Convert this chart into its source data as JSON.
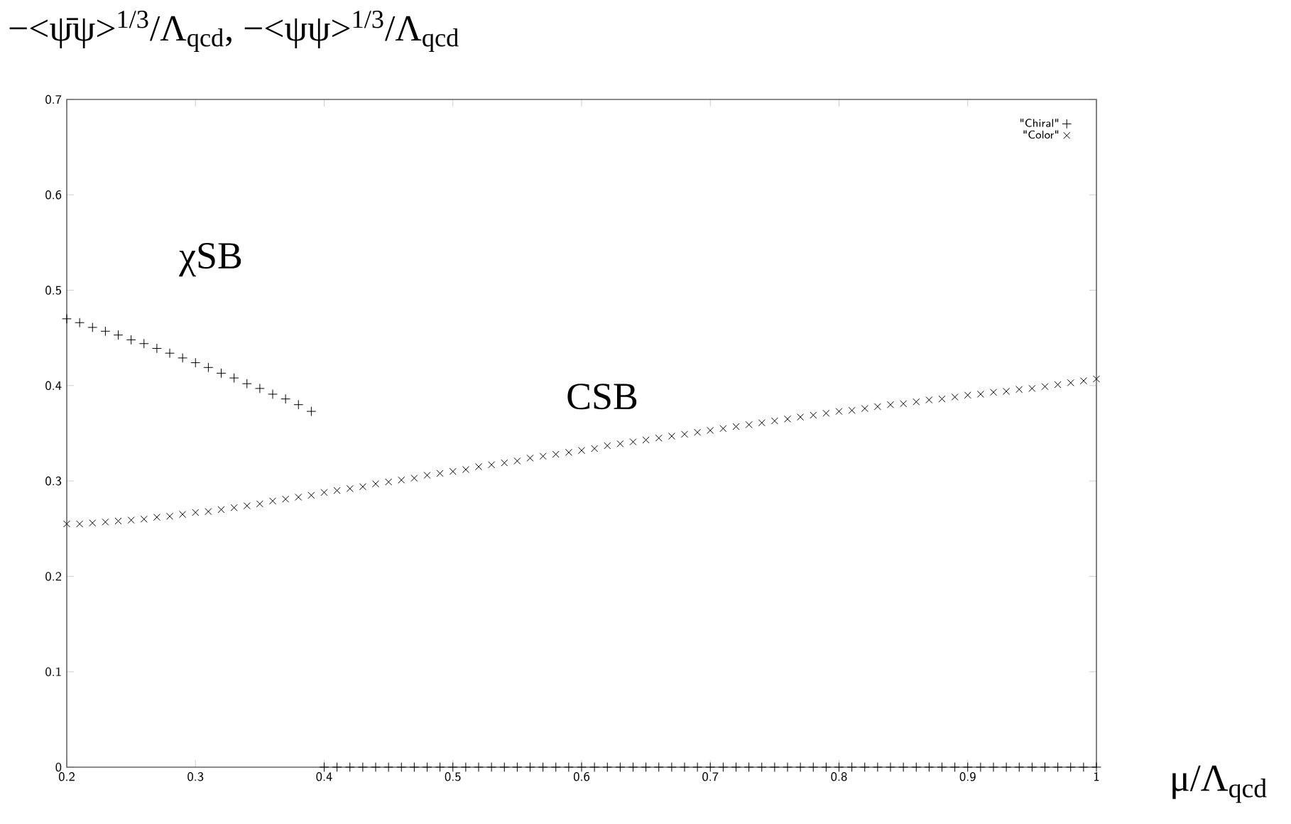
{
  "chart_data": {
    "type": "scatter",
    "ylabel": "−<ψ̄ψ>$^{1/3}$/Λ$_{qcd}$,  −<ψψ>$^{1/3}$/Λ$_{qcd}$",
    "xlabel": "μ/Λ$_{qcd}$",
    "xlim": [
      0.2,
      1
    ],
    "xticks": [
      0.2,
      0.3,
      0.4,
      0.5,
      0.6,
      0.7,
      0.8,
      0.9,
      1
    ],
    "ylim": [
      0,
      0.7
    ],
    "yticks": [
      0,
      0.1,
      0.2,
      0.3,
      0.4,
      0.5,
      0.6,
      0.7
    ],
    "grid": false,
    "legend": "top right",
    "annotations": [
      "χSB",
      "CSB"
    ],
    "series": [
      {
        "name": "\"Chiral\"",
        "color": "#000000",
        "marker": "plus",
        "x": [
          0.2,
          0.21,
          0.22,
          0.23,
          0.24,
          0.25,
          0.26,
          0.27,
          0.28,
          0.29,
          0.3,
          0.31,
          0.32,
          0.33,
          0.34,
          0.35,
          0.36,
          0.37,
          0.38,
          0.39,
          0.4,
          0.41,
          0.42,
          0.43,
          0.44,
          0.45,
          0.46,
          0.47,
          0.48,
          0.49,
          0.5,
          0.51,
          0.52,
          0.53,
          0.54,
          0.55,
          0.56,
          0.57,
          0.58,
          0.59,
          0.6,
          0.61,
          0.62,
          0.63,
          0.64,
          0.65,
          0.66,
          0.67,
          0.68,
          0.69,
          0.7,
          0.71,
          0.72,
          0.73,
          0.74,
          0.75,
          0.76,
          0.77,
          0.78,
          0.79,
          0.8,
          0.81,
          0.82,
          0.83,
          0.84,
          0.85,
          0.86,
          0.87,
          0.88,
          0.89,
          0.9,
          0.91,
          0.92,
          0.93,
          0.94,
          0.95,
          0.96,
          0.97,
          0.98,
          0.99,
          1
        ],
        "values": [
          0.47,
          0.466,
          0.461,
          0.457,
          0.453,
          0.448,
          0.444,
          0.439,
          0.434,
          0.429,
          0.424,
          0.419,
          0.413,
          0.408,
          0.402,
          0.397,
          0.391,
          0.386,
          0.38,
          0.373,
          0,
          0,
          0,
          0,
          0,
          0,
          0,
          0,
          0,
          0,
          0,
          0,
          0,
          0,
          0,
          0,
          0,
          0,
          0,
          0,
          0,
          0,
          0,
          0,
          0,
          0,
          0,
          0,
          0,
          0,
          0,
          0,
          0,
          0,
          0,
          0,
          0,
          0,
          0,
          0,
          0,
          0,
          0,
          0,
          0,
          0,
          0,
          0,
          0,
          0,
          0,
          0,
          0,
          0,
          0,
          0,
          0,
          0,
          0,
          0,
          0
        ]
      },
      {
        "name": "\"Color\"",
        "color": "#000000",
        "marker": "cross",
        "x": [
          0.2,
          0.21,
          0.22,
          0.23,
          0.24,
          0.25,
          0.26,
          0.27,
          0.28,
          0.29,
          0.3,
          0.31,
          0.32,
          0.33,
          0.34,
          0.35,
          0.36,
          0.37,
          0.38,
          0.39,
          0.4,
          0.41,
          0.42,
          0.43,
          0.44,
          0.45,
          0.46,
          0.47,
          0.48,
          0.49,
          0.5,
          0.51,
          0.52,
          0.53,
          0.54,
          0.55,
          0.56,
          0.57,
          0.58,
          0.59,
          0.6,
          0.61,
          0.62,
          0.63,
          0.64,
          0.65,
          0.66,
          0.67,
          0.68,
          0.69,
          0.7,
          0.71,
          0.72,
          0.73,
          0.74,
          0.75,
          0.76,
          0.77,
          0.78,
          0.79,
          0.8,
          0.81,
          0.82,
          0.83,
          0.84,
          0.85,
          0.86,
          0.87,
          0.88,
          0.89,
          0.9,
          0.91,
          0.92,
          0.93,
          0.94,
          0.95,
          0.96,
          0.97,
          0.98,
          0.99,
          1
        ],
        "values": [
          0.255,
          0.255,
          0.256,
          0.257,
          0.258,
          0.259,
          0.26,
          0.262,
          0.263,
          0.265,
          0.267,
          0.268,
          0.27,
          0.272,
          0.274,
          0.276,
          0.279,
          0.281,
          0.283,
          0.285,
          0.288,
          0.29,
          0.292,
          0.294,
          0.297,
          0.299,
          0.301,
          0.303,
          0.306,
          0.308,
          0.31,
          0.312,
          0.315,
          0.317,
          0.319,
          0.321,
          0.324,
          0.326,
          0.328,
          0.33,
          0.332,
          0.334,
          0.337,
          0.339,
          0.341,
          0.343,
          0.345,
          0.347,
          0.349,
          0.351,
          0.353,
          0.355,
          0.357,
          0.359,
          0.361,
          0.363,
          0.365,
          0.367,
          0.369,
          0.371,
          0.373,
          0.374,
          0.376,
          0.378,
          0.38,
          0.381,
          0.383,
          0.385,
          0.386,
          0.388,
          0.39,
          0.391,
          0.393,
          0.394,
          0.396,
          0.397,
          0.399,
          0.401,
          0.403,
          0.405,
          0.407
        ]
      }
    ]
  }
}
